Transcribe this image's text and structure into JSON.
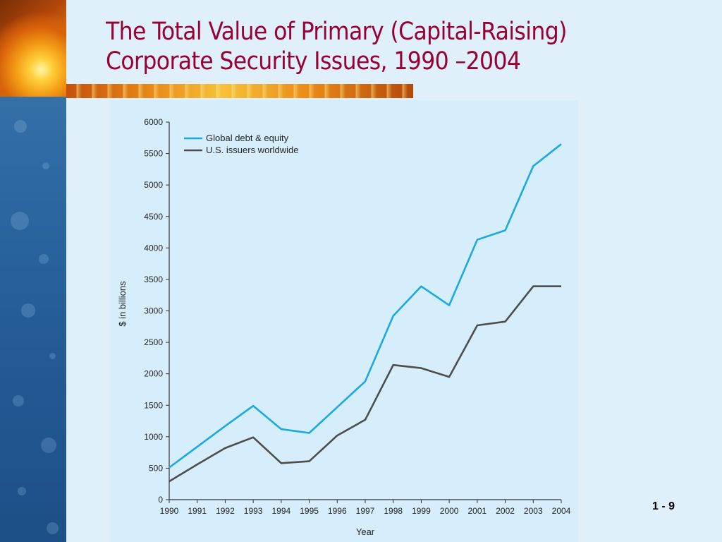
{
  "slide": {
    "title_line1": "The Total Value of Primary (Capital-Raising)",
    "title_line2": "Corporate Security Issues, 1990 –2004",
    "page_number": "1 - 9"
  },
  "colors": {
    "title": "#990033",
    "global_series": "#1ba9e1",
    "us_series": "#4d4d4d",
    "chart_background": "#d6eefb"
  },
  "chart_data": {
    "type": "line",
    "xlabel": "Year",
    "ylabel": "$ in billions",
    "ylim": [
      0,
      6000
    ],
    "yticks": [
      0,
      500,
      1000,
      1500,
      2000,
      2500,
      3000,
      3500,
      4000,
      4500,
      5000,
      5500,
      6000
    ],
    "x": [
      "1990",
      "1991",
      "1992",
      "1993",
      "1994",
      "1995",
      "1996",
      "1997",
      "1998",
      "1999",
      "2000",
      "2001",
      "2002",
      "2003",
      "2004"
    ],
    "legend_position": "top-left",
    "grid": false,
    "series": [
      {
        "name": "Global debt & equity",
        "values": [
          510,
          840,
          1170,
          1490,
          1120,
          1060,
          1470,
          1880,
          2920,
          3390,
          3090,
          4130,
          4280,
          5300,
          5650
        ]
      },
      {
        "name": "U.S. issuers worldwide",
        "values": [
          290,
          560,
          820,
          990,
          580,
          610,
          1020,
          1270,
          2140,
          2090,
          1950,
          2770,
          2830,
          3390,
          3390
        ]
      }
    ]
  }
}
